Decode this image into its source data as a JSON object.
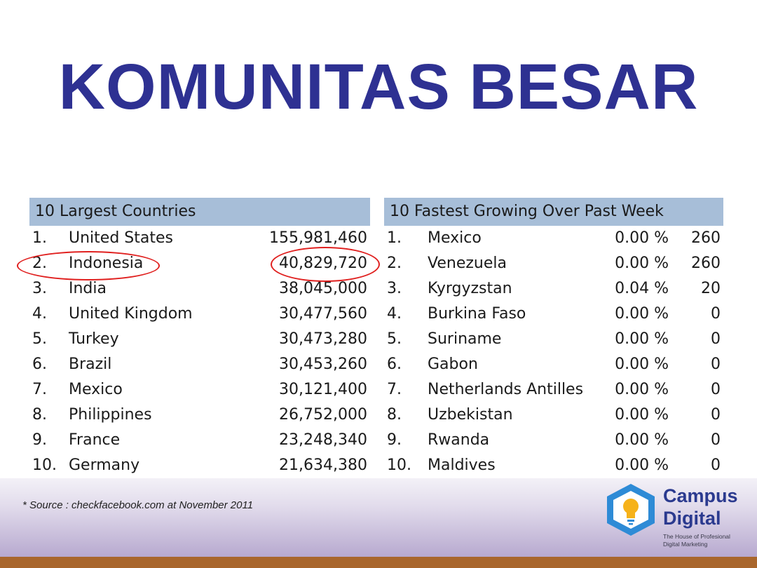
{
  "title": "KOMUNITAS BESAR",
  "largest": {
    "header": "10 Largest Countries",
    "rows": [
      {
        "rank": "1.",
        "country": "United States",
        "users": "155,981,460"
      },
      {
        "rank": "2.",
        "country": "Indonesia",
        "users": "40,829,720"
      },
      {
        "rank": "3.",
        "country": "India",
        "users": "38,045,000"
      },
      {
        "rank": "4.",
        "country": "United Kingdom",
        "users": "30,477,560"
      },
      {
        "rank": "5.",
        "country": "Turkey",
        "users": "30,473,280"
      },
      {
        "rank": "6.",
        "country": "Brazil",
        "users": "30,453,260"
      },
      {
        "rank": "7.",
        "country": "Mexico",
        "users": "30,121,400"
      },
      {
        "rank": "8.",
        "country": "Philippines",
        "users": "26,752,000"
      },
      {
        "rank": "9.",
        "country": "France",
        "users": "23,248,340"
      },
      {
        "rank": "10.",
        "country": "Germany",
        "users": "21,634,380"
      }
    ]
  },
  "fastest": {
    "header": "10 Fastest Growing Over Past Week",
    "rows": [
      {
        "rank": "1.",
        "country": "Mexico",
        "pct": "0.00 %",
        "count": "260"
      },
      {
        "rank": "2.",
        "country": "Venezuela",
        "pct": "0.00 %",
        "count": "260"
      },
      {
        "rank": "3.",
        "country": "Kyrgyzstan",
        "pct": "0.04 %",
        "count": "20"
      },
      {
        "rank": "4.",
        "country": "Burkina Faso",
        "pct": "0.00 %",
        "count": "0"
      },
      {
        "rank": "5.",
        "country": "Suriname",
        "pct": "0.00 %",
        "count": "0"
      },
      {
        "rank": "6.",
        "country": "Gabon",
        "pct": "0.00 %",
        "count": "0"
      },
      {
        "rank": "7.",
        "country": "Netherlands Antilles",
        "pct": "0.00 %",
        "count": "0"
      },
      {
        "rank": "8.",
        "country": "Uzbekistan",
        "pct": "0.00 %",
        "count": "0"
      },
      {
        "rank": "9.",
        "country": "Rwanda",
        "pct": "0.00 %",
        "count": "0"
      },
      {
        "rank": "10.",
        "country": "Maldives",
        "pct": "0.00 %",
        "count": "0"
      }
    ]
  },
  "source": "* Source : checkfacebook.com at November 2011",
  "logo": {
    "line1": "Campus",
    "line2": "Digital",
    "tag1": "The House of Profesional",
    "tag2": "Digital Marketing",
    "icon": "lightbulb-shield-icon"
  },
  "colors": {
    "title": "#2e3192",
    "table_header": "#a7bed8",
    "highlight": "#e0201f",
    "footer_bar": "#a9662c",
    "logo_shield": "#2e8bd6",
    "logo_bulb": "#f6b21a"
  }
}
